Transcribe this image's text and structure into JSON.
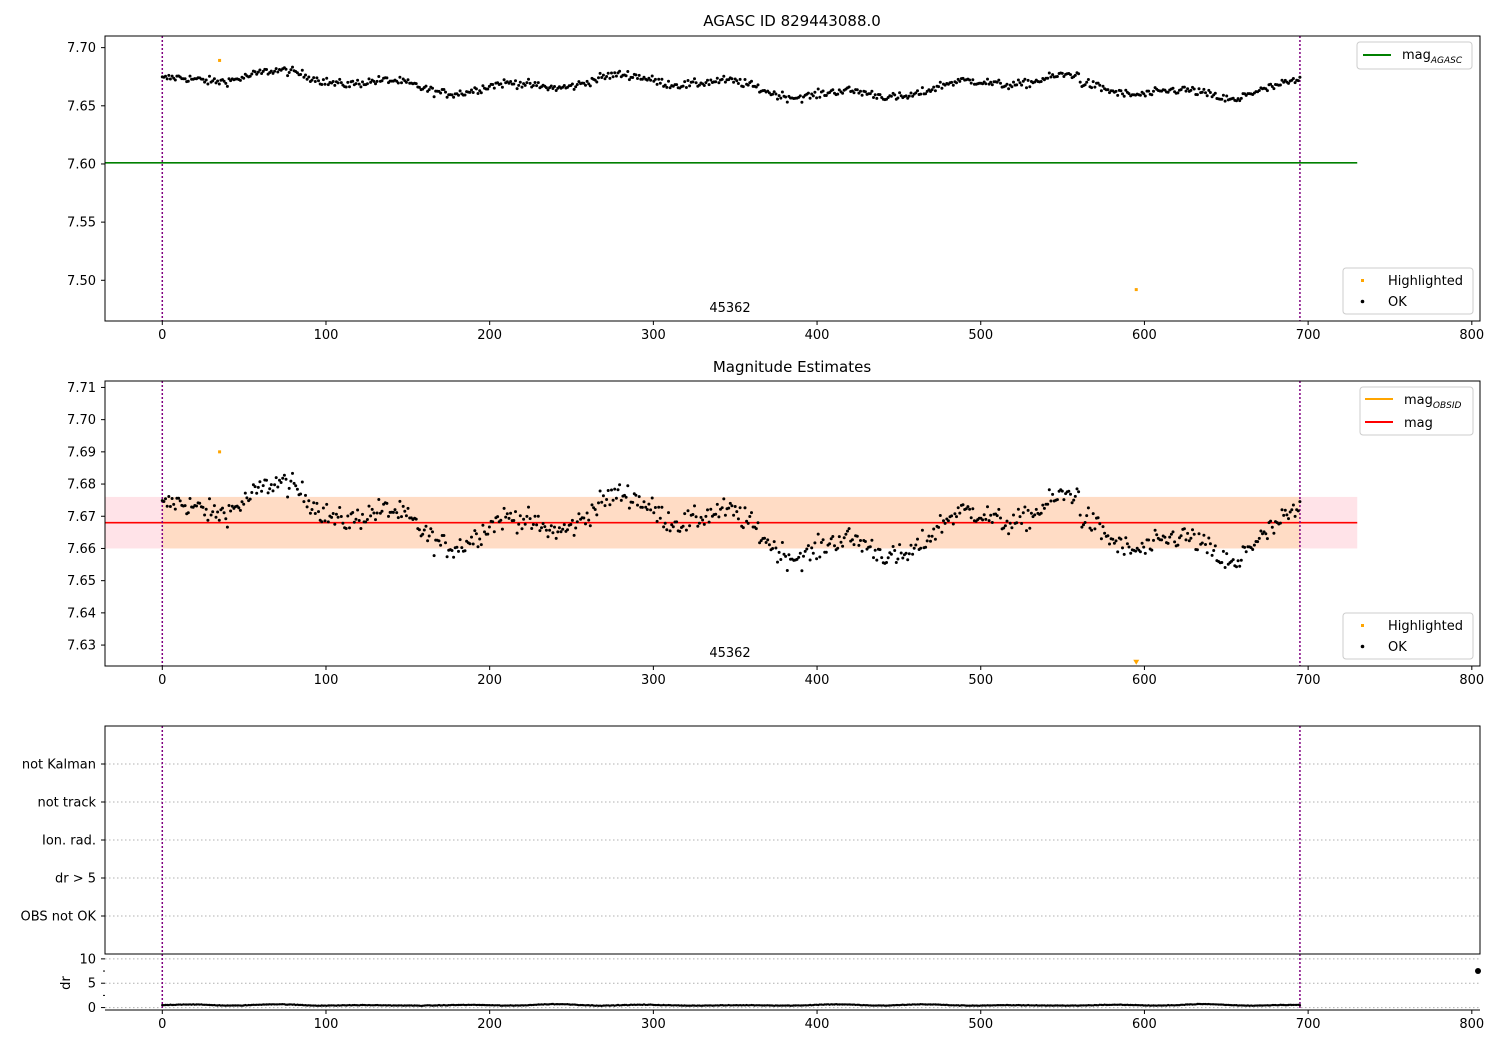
{
  "chart_data": [
    {
      "type": "scatter",
      "title": "AGASC ID 829443088.0",
      "annotation": "45362",
      "xlim": [
        -35,
        805
      ],
      "ylim": [
        7.465,
        7.71
      ],
      "x_ticks": [
        "0",
        "100",
        "200",
        "300",
        "400",
        "500",
        "600",
        "700",
        "800"
      ],
      "y_ticks": [
        "7.50",
        "7.55",
        "7.60",
        "7.65",
        "7.70"
      ],
      "vlines": [
        0,
        695
      ],
      "hlines": [
        {
          "name": "mag_AGASC",
          "y": 7.601,
          "x_range": [
            -35,
            730
          ],
          "color": "#008000"
        }
      ],
      "legend_top": [
        {
          "label": "mag",
          "sub": "AGASC",
          "color": "#008000"
        }
      ],
      "legend_bottom": [
        {
          "label": "Highlighted",
          "color": "#ffa500"
        },
        {
          "label": "OK",
          "color": "#000000"
        }
      ],
      "series_ok": {
        "n": 700,
        "x_range": [
          0,
          695
        ],
        "level": 7.668,
        "amplitude": 0.012,
        "noise": 0.0035
      },
      "highlighted": [
        {
          "x": 35,
          "y": 7.689
        },
        {
          "x": 595,
          "y": 7.492
        }
      ]
    },
    {
      "type": "scatter",
      "title": "Magnitude Estimates",
      "annotation": "45362",
      "xlim": [
        -35,
        805
      ],
      "ylim": [
        7.6235,
        7.712
      ],
      "x_ticks": [
        "0",
        "100",
        "200",
        "300",
        "400",
        "500",
        "600",
        "700",
        "800"
      ],
      "y_ticks": [
        "7.63",
        "7.64",
        "7.65",
        "7.66",
        "7.67",
        "7.68",
        "7.69",
        "7.70",
        "7.71"
      ],
      "vlines": [
        0,
        695
      ],
      "mag": 7.668,
      "mag_band": [
        7.66,
        7.676
      ],
      "band_x_range": [
        -35,
        730
      ],
      "legend_top": [
        {
          "label": "mag",
          "sub": "OBSID",
          "color": "#ffa500"
        },
        {
          "label": "mag",
          "sub": "",
          "color": "#ff0000"
        }
      ],
      "legend_bottom": [
        {
          "label": "Highlighted",
          "color": "#ffa500"
        },
        {
          "label": "OK",
          "color": "#000000"
        }
      ],
      "highlighted": [
        {
          "x": 35,
          "y": 7.69
        },
        {
          "x": 595,
          "y": 7.6245
        }
      ]
    },
    {
      "type": "scatter",
      "flag_labels": [
        "not Kalman",
        "not track",
        "Ion. rad.",
        "dr > 5",
        "OBS not OK"
      ],
      "vlines": [
        0,
        695
      ],
      "dr_ylabel": "dr",
      "dr_ticks": [
        "0",
        "5",
        "10"
      ],
      "dr_ylim": [
        -0.5,
        11
      ],
      "x_ticks": [
        "0",
        "100",
        "200",
        "300",
        "400",
        "500",
        "600",
        "700",
        "800"
      ],
      "dr_series": {
        "n": 700,
        "x_range": [
          0,
          695
        ],
        "level": 0.4,
        "amplitude": 0.3
      },
      "dr_outlier": {
        "x": 805,
        "y": 7.5
      }
    }
  ],
  "colors": {
    "ok": "#000000",
    "highlighted": "#ffa500",
    "agasc_line": "#008000",
    "mag_line": "#ff0000",
    "band_fill": "#ffc0cb",
    "band_fill_inner": "#ffdab9",
    "vline": "#800080"
  }
}
